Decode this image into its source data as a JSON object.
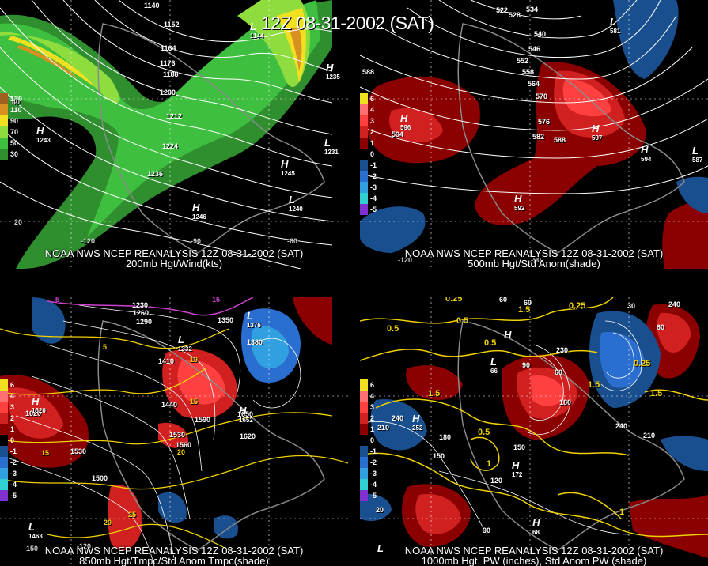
{
  "main_title": "12Z 08-31-2002 (SAT)",
  "colors": {
    "green_dark": "#2f8f2f",
    "green": "#3fbf3f",
    "green_light": "#8fdc3f",
    "yellow": "#f0e020",
    "orange": "#d89020",
    "brown": "#a06020",
    "red_dark": "#8b0000",
    "red": "#d02020",
    "red_light": "#ff4040",
    "blue_dark": "#1a4f8f",
    "blue": "#2a6fcf",
    "contour": "#ffffff",
    "yellow_contour": "#f0d000",
    "magenta": "#d040d0"
  },
  "panels": [
    {
      "caption_line1": "NOAA NWS NCEP REANALYSIS 12Z 08-31-2002 (SAT)",
      "caption_line2": "200mb Hgt/Wind(kts)",
      "legend": [
        {
          "value": "130",
          "color": "#a06020"
        },
        {
          "value": "110",
          "color": "#d89020"
        },
        {
          "value": "90",
          "color": "#f0e020"
        },
        {
          "value": "70",
          "color": "#8fdc3f"
        },
        {
          "value": "50",
          "color": "#3fbf3f"
        },
        {
          "value": "30",
          "color": "#2f8f2f"
        }
      ],
      "contour_labels": [
        "1140",
        "1152",
        "1164",
        "1176",
        "1188",
        "1200",
        "1212",
        "1224",
        "1236"
      ],
      "highs": [
        {
          "letter": "H",
          "value": "1243"
        },
        {
          "letter": "H",
          "value": "1235"
        },
        {
          "letter": "H",
          "value": "1245"
        },
        {
          "letter": "H",
          "value": "1246"
        }
      ],
      "lows": [
        {
          "letter": "L",
          "value": "1144"
        },
        {
          "letter": "L",
          "value": "1231"
        },
        {
          "letter": "L",
          "value": "1240"
        }
      ],
      "lon_labels": [
        "-120",
        "-90",
        "-60"
      ],
      "lat_labels": [
        "40",
        "20"
      ]
    },
    {
      "caption_line1": "NOAA NWS NCEP REANALYSIS 12Z 08-31-2002 (SAT)",
      "caption_line2": "500mb Hgt/Std Anom(shade)",
      "legend": [
        {
          "value": "6",
          "color": "#f0e020"
        },
        {
          "value": "4",
          "color": "#ff7070"
        },
        {
          "value": "3",
          "color": "#ff4040"
        },
        {
          "value": "2",
          "color": "#d02020"
        },
        {
          "value": "1",
          "color": "#8b0000"
        },
        {
          "value": "0",
          "color": "#000000"
        },
        {
          "value": "-1",
          "color": "#1a4f8f"
        },
        {
          "value": "-2",
          "color": "#2a6fcf"
        },
        {
          "value": "-3",
          "color": "#30a0e0"
        },
        {
          "value": "-4",
          "color": "#30d0d0"
        },
        {
          "value": "-5",
          "color": "#8030d0"
        }
      ],
      "contour_labels": [
        "522",
        "528",
        "534",
        "540",
        "546",
        "552",
        "558",
        "564",
        "570",
        "576",
        "582",
        "588",
        "594",
        "588"
      ],
      "highs": [
        {
          "letter": "H",
          "value": "596"
        },
        {
          "letter": "H",
          "value": "597"
        },
        {
          "letter": "H",
          "value": "594"
        },
        {
          "letter": "H",
          "value": "592"
        }
      ],
      "lows": [
        {
          "letter": "L",
          "value": "581"
        },
        {
          "letter": "L",
          "value": "587"
        }
      ],
      "lon_labels": [
        "-120",
        "-90"
      ],
      "lat_labels": []
    },
    {
      "caption_line1": "NOAA NWS NCEP REANALYSIS 12Z 08-31-2002 (SAT)",
      "caption_line2": "850mb Hgt/Tmpc/Std Anom Tmpc(shade)",
      "legend": [
        {
          "value": "6",
          "color": "#f0e020"
        },
        {
          "value": "4",
          "color": "#ff7070"
        },
        {
          "value": "3",
          "color": "#ff4040"
        },
        {
          "value": "2",
          "color": "#d02020"
        },
        {
          "value": "1",
          "color": "#8b0000"
        },
        {
          "value": "0",
          "color": "#000000"
        },
        {
          "value": "-1",
          "color": "#1a4f8f"
        },
        {
          "value": "-2",
          "color": "#2a6fcf"
        },
        {
          "value": "-3",
          "color": "#30a0e0"
        },
        {
          "value": "-4",
          "color": "#30d0d0"
        },
        {
          "value": "-5",
          "color": "#8030d0"
        }
      ],
      "contour_labels": [
        "1230",
        "1260",
        "1290",
        "1350",
        "1380",
        "1410",
        "1440",
        "1530",
        "1560",
        "1590",
        "1620",
        "1620",
        "1530",
        "1500",
        "1650"
      ],
      "temp_labels": [
        "-5",
        "5",
        "10",
        "15",
        "15",
        "15",
        "20",
        "20",
        "25"
      ],
      "highs": [
        {
          "letter": "H",
          "value": "1620"
        },
        {
          "letter": "H",
          "value": "1652"
        }
      ],
      "lows": [
        {
          "letter": "L",
          "value": "1376"
        },
        {
          "letter": "L",
          "value": "1332"
        },
        {
          "letter": "L",
          "value": "1463"
        }
      ],
      "lon_labels": [
        "-120",
        "-150"
      ],
      "lat_labels": []
    },
    {
      "caption_line1": "NOAA NWS NCEP REANALYSIS 12Z 08-31-2002 (SAT)",
      "caption_line2": "1000mb Hgt, PW (inches), Std Anom PW (shade)",
      "legend": [
        {
          "value": "6",
          "color": "#f0e020"
        },
        {
          "value": "4",
          "color": "#ff7070"
        },
        {
          "value": "3",
          "color": "#ff4040"
        },
        {
          "value": "2",
          "color": "#d02020"
        },
        {
          "value": "1",
          "color": "#8b0000"
        },
        {
          "value": "0",
          "color": "#000000"
        },
        {
          "value": "-1",
          "color": "#1a4f8f"
        },
        {
          "value": "-2",
          "color": "#2a6fcf"
        },
        {
          "value": "-3",
          "color": "#30a0e0"
        },
        {
          "value": "-4",
          "color": "#30d0d0"
        },
        {
          "value": "-5",
          "color": "#8030d0"
        }
      ],
      "contour_labels": [
        "60",
        "30",
        "240",
        "90",
        "230",
        "60",
        "180",
        "210",
        "240",
        "180",
        "150",
        "120",
        "90",
        "210",
        "20",
        "150",
        "240",
        "60",
        "60"
      ],
      "pw_labels": [
        "0.25",
        "0.25",
        "0.5",
        "0.5",
        "0.5",
        "1.5",
        "1.5",
        "1.5",
        "0.5",
        "1",
        "1",
        "0.25",
        "1.5"
      ],
      "highs": [
        {
          "letter": "H",
          "value": "252"
        },
        {
          "letter": "H",
          "value": ""
        },
        {
          "letter": "H",
          "value": "172"
        },
        {
          "letter": "H",
          "value": "68"
        }
      ],
      "lows": [
        {
          "letter": "L",
          "value": "66"
        },
        {
          "letter": "L",
          "value": ""
        }
      ],
      "lon_labels": [],
      "lat_labels": []
    }
  ]
}
